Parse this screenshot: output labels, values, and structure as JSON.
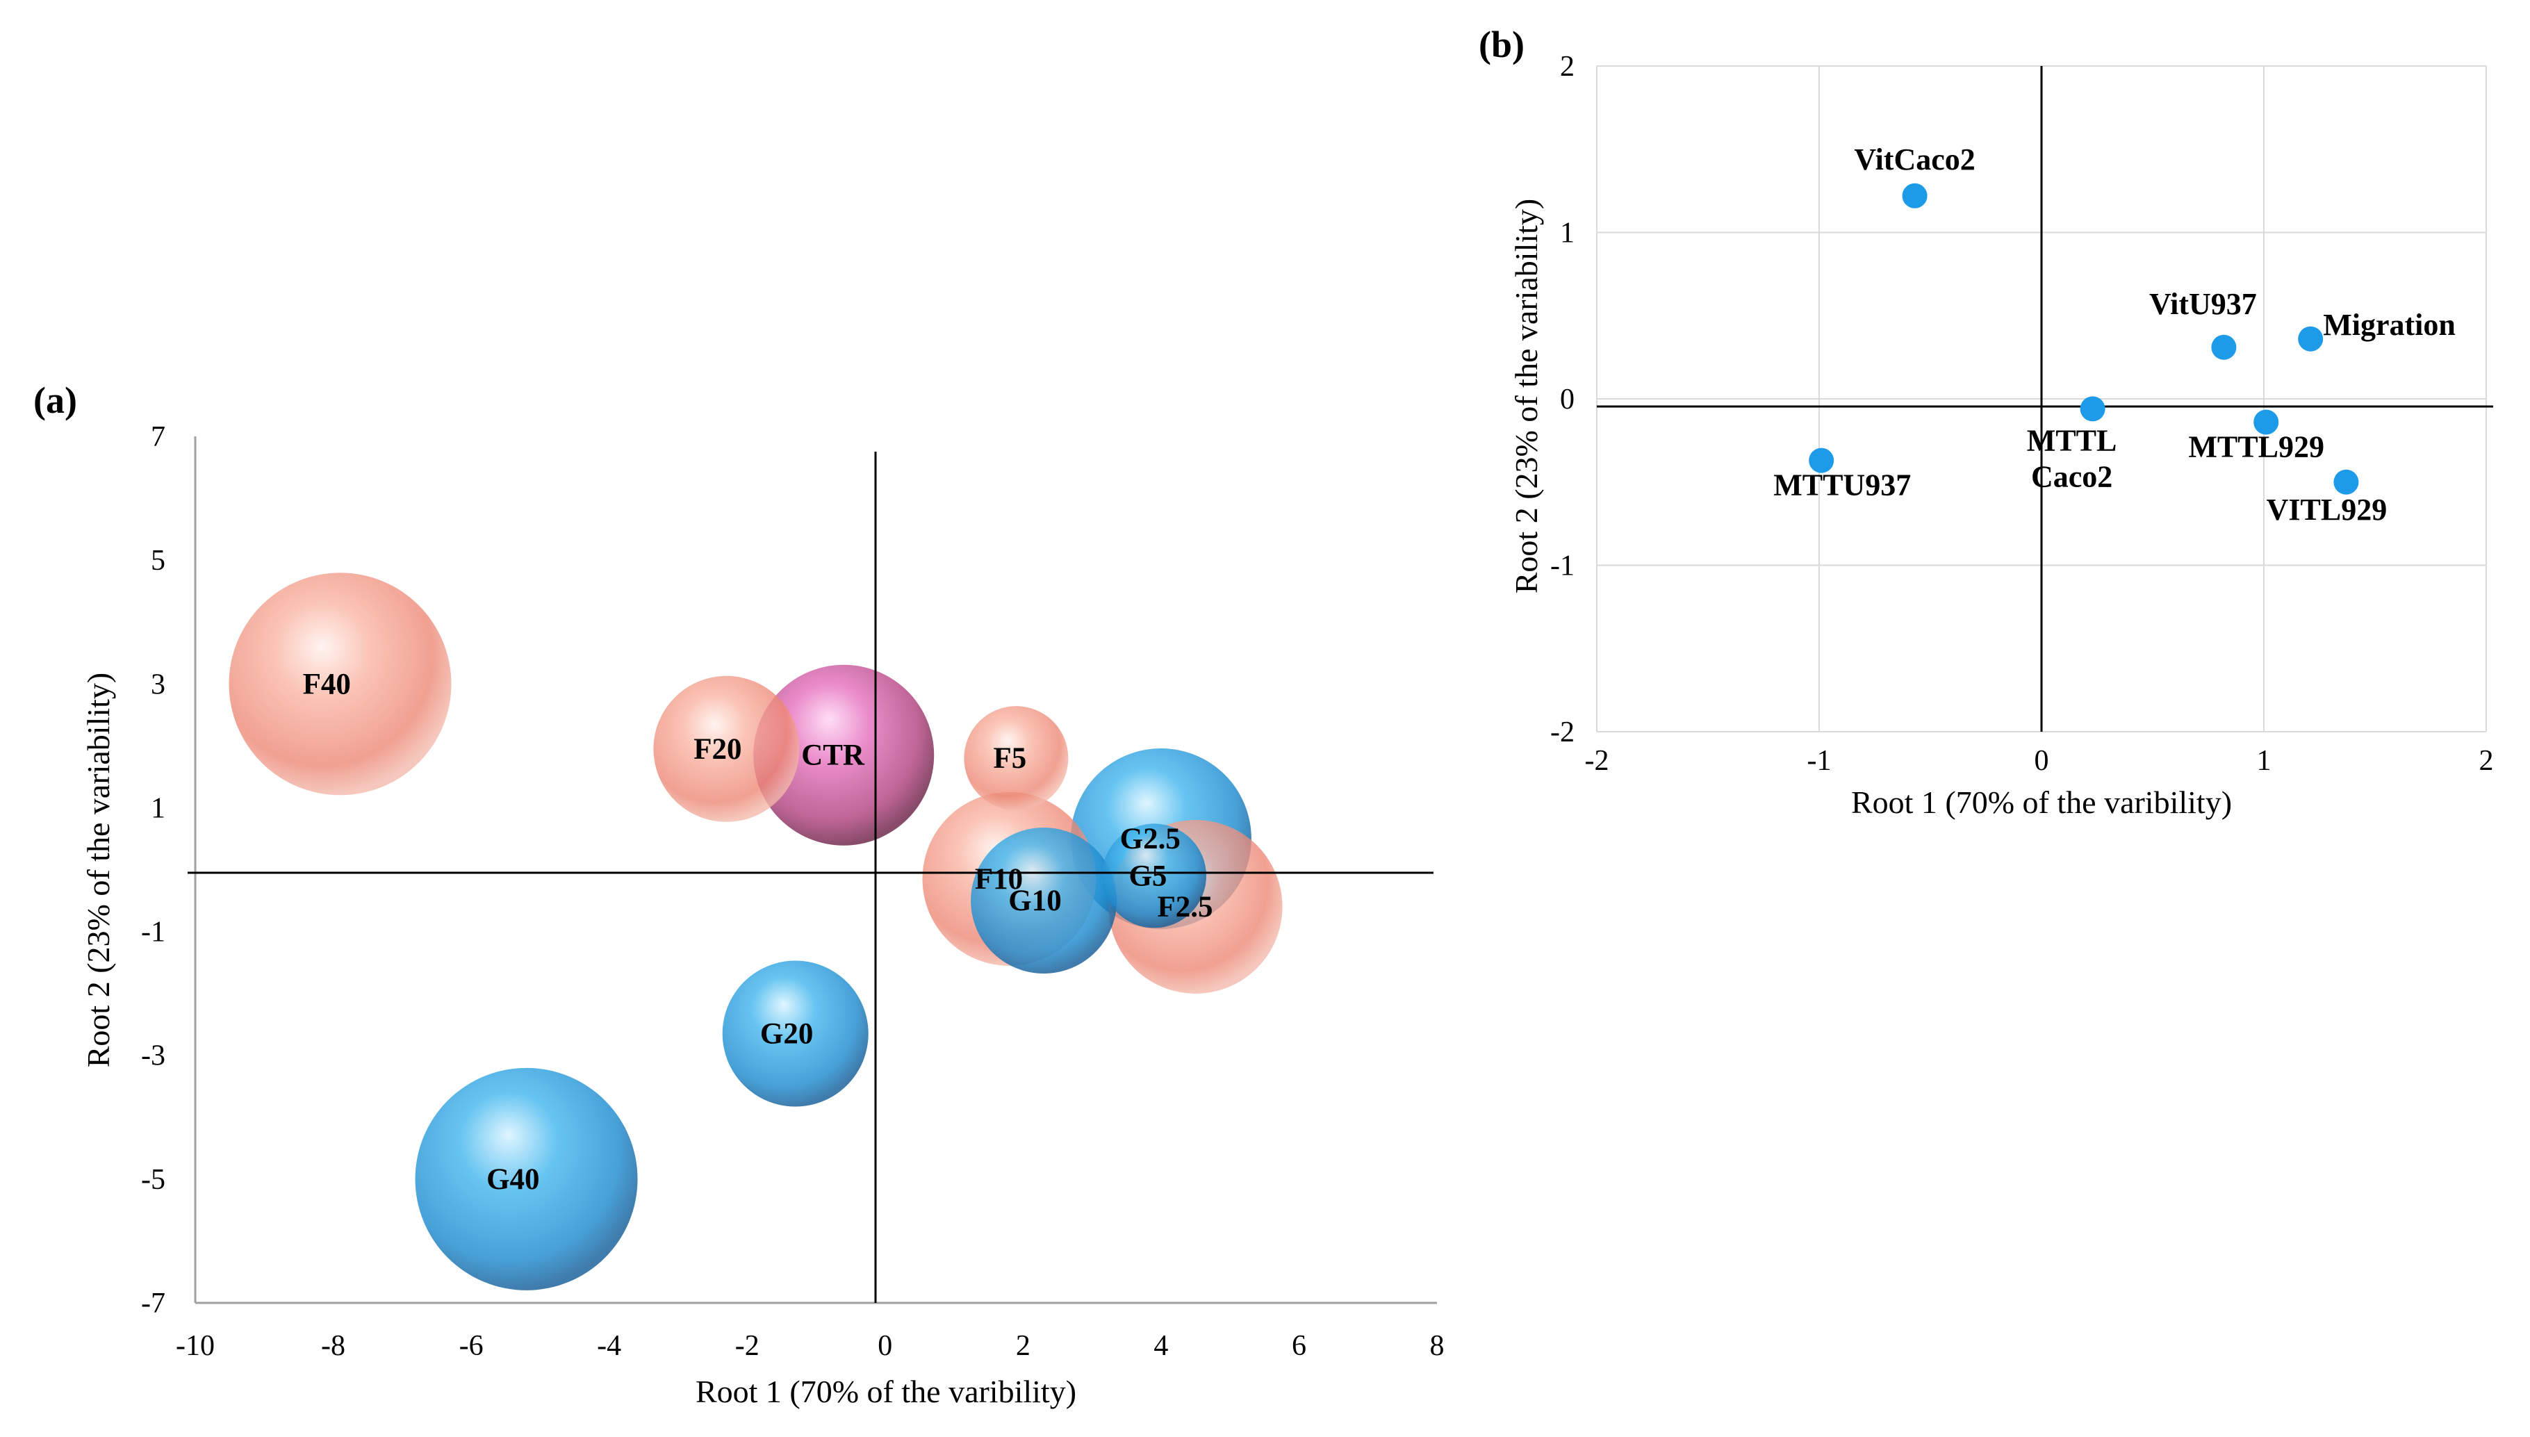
{
  "chart_data": [
    {
      "panel_label": "(a)",
      "type": "scatter",
      "subtype": "bubble",
      "xlabel": "Root 1 (70% of the varibility)",
      "ylabel": "Root 2 (23% of the variability)",
      "xlim": [
        -10,
        8
      ],
      "ylim": [
        -7,
        7
      ],
      "xticks": [
        "-10",
        "-8",
        "-6",
        "-4",
        "-2",
        "0",
        "2",
        "4",
        "6",
        "8"
      ],
      "yticks": [
        "7",
        "5",
        "3",
        "1",
        "-1",
        "-3",
        "-5",
        "-7"
      ],
      "grid": false,
      "colors": {
        "F": "#f08a7e",
        "G": "#2a9fe0",
        "CTR": "#d6569e"
      },
      "points": [
        {
          "label": "F40",
          "x": -7.9,
          "y": 3.0,
          "size": 3.2,
          "group": "F"
        },
        {
          "label": "F20",
          "x": -2.3,
          "y": 1.95,
          "size": 2.1,
          "group": "F"
        },
        {
          "label": "CTR",
          "x": -0.6,
          "y": 1.85,
          "size": 2.6,
          "group": "CTR"
        },
        {
          "label": "F5",
          "x": 1.9,
          "y": 1.8,
          "size": 1.5,
          "group": "F"
        },
        {
          "label": "F10",
          "x": 1.8,
          "y": -0.15,
          "size": 2.5,
          "group": "F"
        },
        {
          "label": "G10",
          "x": 2.3,
          "y": -0.5,
          "size": 2.1,
          "group": "G"
        },
        {
          "label": "G2.5",
          "x": 4.0,
          "y": 0.5,
          "size": 2.6,
          "group": "G"
        },
        {
          "label": "G5",
          "x": 3.9,
          "y": -0.1,
          "size": 1.5,
          "group": "G"
        },
        {
          "label": "F2.5",
          "x": 4.5,
          "y": -0.6,
          "size": 2.5,
          "group": "F"
        },
        {
          "label": "G20",
          "x": -1.3,
          "y": -2.65,
          "size": 2.1,
          "group": "G"
        },
        {
          "label": "G40",
          "x": -5.2,
          "y": -5.0,
          "size": 3.2,
          "group": "G"
        }
      ]
    },
    {
      "panel_label": "(b)",
      "type": "scatter",
      "xlabel": "Root 1 (70% of the varibility)",
      "ylabel": "Root 2 (23% of the variability)",
      "xlim": [
        -2,
        2
      ],
      "ylim": [
        -2,
        2
      ],
      "xticks": [
        "-2",
        "-1",
        "0",
        "1",
        "2"
      ],
      "yticks": [
        "2",
        "1",
        "0",
        "-1",
        "-2"
      ],
      "grid": true,
      "marker_color": "#1e9be8",
      "points": [
        {
          "label": "VitCaco2",
          "x": -0.57,
          "y": 1.22
        },
        {
          "label": "VitU937",
          "x": 0.82,
          "y": 0.31
        },
        {
          "label": "Migration",
          "x": 1.21,
          "y": 0.36
        },
        {
          "label": "MTTL Caco2",
          "x": 0.23,
          "y": -0.06
        },
        {
          "label": "MTTL929",
          "x": 1.01,
          "y": -0.14
        },
        {
          "label": "MTTU937",
          "x": -0.99,
          "y": -0.37
        },
        {
          "label": "VITL929",
          "x": 1.37,
          "y": -0.5
        }
      ]
    }
  ]
}
